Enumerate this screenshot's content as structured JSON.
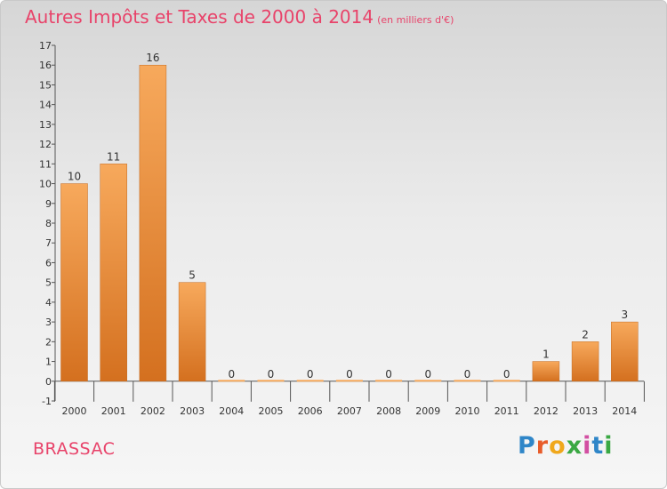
{
  "header": {
    "title": "Autres Impôts et Taxes de 2000 à 2014",
    "unit": "(en milliers d'€)"
  },
  "footer": {
    "city": "BRASSAC",
    "brand_letters": [
      "P",
      "r",
      "o",
      "x",
      "i",
      "t",
      "i"
    ]
  },
  "colors": {
    "title": "#e8436a",
    "bar_top": "#f7a95c",
    "bar_bottom": "#d4701f"
  },
  "chart_data": {
    "type": "bar",
    "title": "Autres Impôts et Taxes de 2000 à 2014",
    "categories": [
      "2000",
      "2001",
      "2002",
      "2003",
      "2004",
      "2005",
      "2006",
      "2007",
      "2008",
      "2009",
      "2010",
      "2011",
      "2012",
      "2013",
      "2014"
    ],
    "values": [
      10,
      11,
      16,
      5,
      0,
      0,
      0,
      0,
      0,
      0,
      0,
      0,
      1,
      2,
      3
    ],
    "ylim": [
      -1,
      17
    ],
    "yticks": [
      -1,
      0,
      1,
      2,
      3,
      4,
      5,
      6,
      7,
      8,
      9,
      10,
      11,
      12,
      13,
      14,
      15,
      16,
      17
    ],
    "grid": false
  }
}
